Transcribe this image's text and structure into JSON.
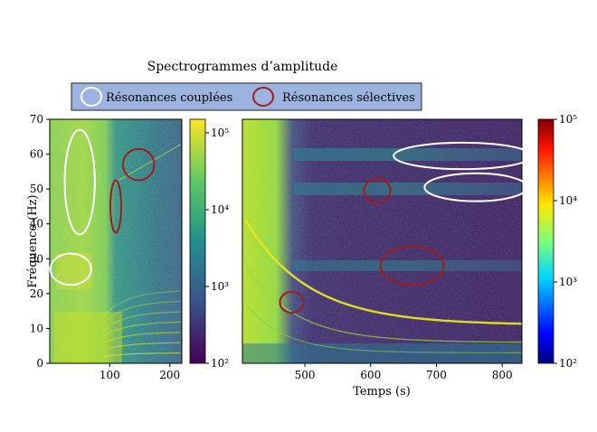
{
  "title": "Spectrogrammes d’amplitude",
  "legend": {
    "placement": "top",
    "background": "#9db3df",
    "items": [
      {
        "label": "Résonances couplées",
        "color": "#ffffff"
      },
      {
        "label": "Résonances sélectives",
        "color": "#a01c1c"
      }
    ]
  },
  "chart_data": [
    {
      "type": "heatmap",
      "panel": "left",
      "ylabel": "Fréquence (Hz)",
      "xlabel": "",
      "xlim": [
        0,
        220
      ],
      "ylim": [
        0,
        70
      ],
      "xticks": [
        100,
        200
      ],
      "yticks": [
        0,
        10,
        20,
        30,
        40,
        50,
        60,
        70
      ],
      "colorbar": {
        "scale": "log",
        "range": [
          100,
          150000
        ],
        "ticks": [
          {
            "value": 100,
            "label": "10²"
          },
          {
            "value": 1000,
            "label": "10³"
          },
          {
            "value": 10000,
            "label": "10⁴"
          },
          {
            "value": 100000,
            "label": "10⁵"
          }
        ]
      },
      "annotations": [
        {
          "kind": "coupled",
          "cx": 50,
          "cy": 52,
          "rx": 25,
          "ry": 15
        },
        {
          "kind": "coupled",
          "cx": 35,
          "cy": 27,
          "rx": 34,
          "ry": 4.5
        },
        {
          "kind": "selective",
          "cx": 148,
          "cy": 57,
          "rx": 26,
          "ry": 4.5
        },
        {
          "kind": "selective",
          "cx": 110,
          "cy": 45,
          "rx": 9,
          "ry": 7.5
        }
      ]
    },
    {
      "type": "heatmap",
      "panel": "right",
      "xlabel": "Temps (s)",
      "ylabel": "",
      "xlim": [
        405,
        830
      ],
      "ylim": [
        0,
        70
      ],
      "xticks": [
        500,
        600,
        700,
        800
      ],
      "colorbar": {
        "scale": "log",
        "range": [
          100,
          100000
        ],
        "ticks": [
          {
            "value": 100,
            "label": "10²"
          },
          {
            "value": 1000,
            "label": "10³"
          },
          {
            "value": 10000,
            "label": "10⁴"
          },
          {
            "value": 100000,
            "label": "10⁵"
          }
        ]
      },
      "annotations": [
        {
          "kind": "coupled",
          "cx": 740,
          "cy": 59.5,
          "rx": 105,
          "ry": 3.8
        },
        {
          "kind": "coupled",
          "cx": 760,
          "cy": 50.5,
          "rx": 78,
          "ry": 4
        },
        {
          "kind": "selective",
          "cx": 610,
          "cy": 49.5,
          "rx": 20,
          "ry": 3.5
        },
        {
          "kind": "selective",
          "cx": 663,
          "cy": 28,
          "rx": 48,
          "ry": 5.5
        },
        {
          "kind": "selective",
          "cx": 480,
          "cy": 17.5,
          "rx": 18,
          "ry": 3
        }
      ]
    }
  ]
}
